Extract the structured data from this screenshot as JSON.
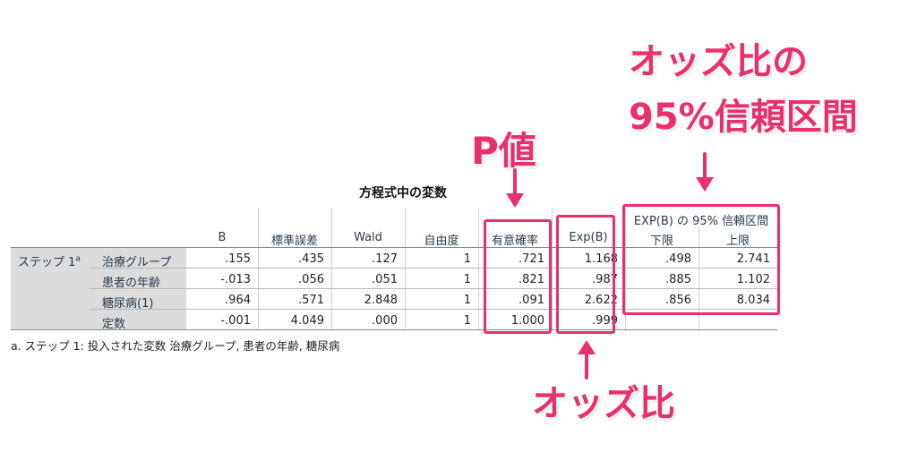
{
  "table": {
    "title": "方程式中の変数",
    "ci_header": "EXP(B) の 95% 信頼区間",
    "columns": [
      "B",
      "標準誤差",
      "Wald",
      "自由度",
      "有意確率",
      "Exp(B)",
      "下限",
      "上限"
    ],
    "step_label": "ステップ 1",
    "step_sup": "a",
    "rows": [
      {
        "label": "治療グループ",
        "values": [
          ".155",
          ".435",
          ".127",
          "1",
          ".721",
          "1.168",
          ".498",
          "2.741"
        ]
      },
      {
        "label": "患者の年齢",
        "values": [
          "-.013",
          ".056",
          ".051",
          "1",
          ".821",
          ".987",
          ".885",
          "1.102"
        ]
      },
      {
        "label": "糖尿病(1)",
        "values": [
          ".964",
          ".571",
          "2.848",
          "1",
          ".091",
          "2.622",
          ".856",
          "8.034"
        ]
      },
      {
        "label": "定数",
        "values": [
          "-.001",
          "4.049",
          ".000",
          "1",
          "1.000",
          ".999",
          "",
          ""
        ]
      }
    ],
    "footnote": "a. ステップ 1: 投入された変数 治療グループ, 患者の年齢, 糖尿病"
  },
  "annotations": {
    "odds_ci_line1": "オッズ比の",
    "odds_ci_line2": "95%信頼区間",
    "p_value": "P値",
    "odds_ratio": "オッズ比"
  },
  "colors": {
    "accent": "#e8306e",
    "label_bg": "#dcdcdc"
  }
}
